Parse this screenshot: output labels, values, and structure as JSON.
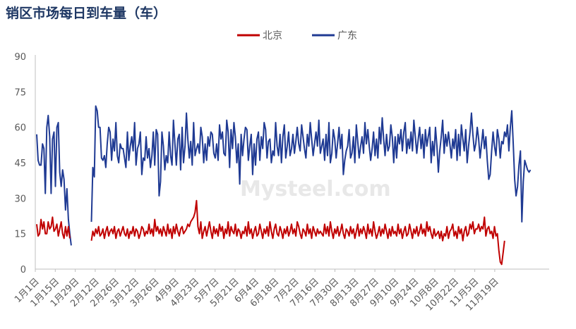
{
  "chart_data": {
    "type": "line",
    "title": "销区市场每日到车量（车）",
    "watermark": "Mysteel.com",
    "legend_position": "top-center",
    "grid": false,
    "ylim": [
      0,
      90
    ],
    "yticks": [
      0,
      15,
      30,
      45,
      60,
      75,
      90
    ],
    "xticks": [
      "1月1日",
      "1月15日",
      "1月29日",
      "2月12日",
      "2月26日",
      "3月12日",
      "3月26日",
      "4月9日",
      "4月23日",
      "5月7日",
      "5月21日",
      "6月4日",
      "6月18日",
      "7月2日",
      "7月16日",
      "7月30日",
      "8月13日",
      "8月27日",
      "9月10日",
      "9月24日",
      "10月8日",
      "10月22日",
      "11月5日",
      "11月19日"
    ],
    "series": [
      {
        "name": "北京",
        "color": "#c00000",
        "segments": [
          {
            "start": 0,
            "values": [
              19,
              14,
              15,
              21,
              17,
              20,
              15,
              15,
              20,
              17,
              18,
              22,
              16,
              17,
              19,
              14,
              17,
              20,
              15,
              13,
              18,
              14,
              18,
              13
            ]
          },
          {
            "start": 38,
            "values": [
              12,
              16,
              14,
              17,
              15,
              18,
              14,
              15,
              17,
              13,
              16,
              18,
              14,
              16,
              17,
              15,
              18,
              13,
              16,
              17,
              14,
              16,
              18,
              15,
              14,
              17,
              13,
              16,
              15,
              18,
              14,
              17,
              16,
              13,
              15,
              18,
              17,
              14,
              16,
              15,
              19,
              15,
              17,
              14,
              21,
              16,
              18,
              15,
              17,
              14,
              18,
              16,
              14,
              19,
              15,
              17,
              13,
              18,
              15,
              19,
              16,
              14,
              17,
              18,
              15,
              16,
              17,
              19,
              18,
              20,
              21,
              22,
              24,
              29,
              18,
              15,
              20,
              13,
              16,
              18,
              14,
              17,
              20,
              16,
              13,
              18,
              15,
              17,
              14,
              19,
              16,
              18,
              13,
              17,
              15,
              20,
              14,
              18,
              16,
              15,
              19,
              14,
              17,
              16,
              13,
              16,
              15,
              18,
              14,
              20,
              15,
              17,
              13,
              16,
              18,
              14,
              15,
              19,
              16,
              13,
              17,
              15,
              18,
              14,
              20,
              16,
              13,
              17,
              19,
              15,
              14,
              18,
              16,
              13,
              17,
              15,
              18,
              14,
              16,
              19,
              15,
              17,
              14,
              20,
              18,
              15,
              13,
              17,
              16,
              14,
              19,
              15,
              17,
              13,
              18,
              16,
              14,
              17,
              15,
              16,
              15,
              14,
              19,
              15,
              18,
              14,
              20,
              16,
              13,
              17,
              15,
              18,
              14,
              16,
              19,
              15,
              13,
              17,
              16,
              14,
              18,
              15,
              17,
              13,
              16,
              19,
              14,
              17,
              15,
              18,
              16,
              13,
              19,
              15,
              17,
              14,
              20,
              16,
              13,
              15,
              18,
              14,
              17,
              15,
              19,
              16,
              13,
              17,
              14,
              18,
              15,
              16,
              14,
              19,
              15,
              17,
              13,
              16,
              18,
              14,
              15,
              19,
              16,
              13,
              17,
              15,
              18,
              14,
              16,
              19,
              15,
              17,
              14,
              20,
              16,
              18,
              15,
              13,
              17,
              14,
              15,
              16,
              13,
              16,
              12,
              15,
              14,
              18,
              13,
              16,
              17,
              19,
              14,
              16,
              13,
              18,
              15,
              17,
              12,
              16,
              18,
              14,
              15,
              19,
              17,
              20,
              15,
              17,
              17,
              19,
              16,
              18,
              17,
              22,
              14,
              17,
              18,
              15,
              16,
              13,
              18,
              14,
              15,
              8,
              3,
              2,
              7,
              12
            ]
          }
        ]
      },
      {
        "name": "广东",
        "color": "#1f3a93",
        "segments": [
          {
            "start": 0,
            "values": [
              57,
              46,
              44,
              44,
              53,
              51,
              32,
              60,
              65,
              56,
              32,
              55,
              58,
              35,
              60,
              62,
              41,
              35,
              42,
              38,
              25,
              34,
              21,
              15,
              10
            ]
          },
          {
            "start": 38,
            "values": [
              20,
              43,
              39,
              69,
              67,
              60,
              60,
              47,
              46,
              48,
              43,
              53,
              60,
              58,
              46,
              55,
              50,
              62,
              48,
              45,
              53,
              51,
              51,
              47,
              43,
              58,
              46,
              52,
              56,
              50,
              62,
              44,
              51,
              53,
              58,
              40,
              47,
              46,
              56,
              47,
              51,
              43,
              48,
              58,
              44,
              59,
              57,
              31,
              37,
              58,
              52,
              42,
              48,
              45,
              58,
              48,
              44,
              63,
              53,
              44,
              55,
              57,
              42,
              60,
              45,
              52,
              66,
              55,
              47,
              54,
              44,
              62,
              48,
              51,
              53,
              49,
              60,
              56,
              45,
              53,
              46,
              56,
              52,
              58,
              57,
              49,
              47,
              53,
              46,
              61,
              55,
              58,
              49,
              48,
              63,
              58,
              43,
              59,
              51,
              62,
              56,
              45,
              53,
              36,
              57,
              48,
              55,
              60,
              59,
              46,
              52,
              57,
              40,
              53,
              44,
              55,
              58,
              46,
              56,
              51,
              62,
              59,
              47,
              54,
              55,
              45,
              50,
              48,
              62,
              52,
              48,
              57,
              45,
              56,
              61,
              47,
              52,
              58,
              48,
              51,
              57,
              49,
              54,
              60,
              53,
              50,
              61,
              56,
              51,
              47,
              57,
              52,
              62,
              55,
              48,
              53,
              58,
              52,
              63,
              49,
              52,
              55,
              46,
              57,
              48,
              62,
              45,
              49,
              59,
              55,
              47,
              53,
              60,
              51,
              57,
              40,
              46,
              50,
              52,
              59,
              47,
              49,
              56,
              45,
              61,
              54,
              47,
              52,
              56,
              49,
              62,
              53,
              59,
              52,
              46,
              51,
              58,
              48,
              55,
              47,
              60,
              53,
              64,
              55,
              48,
              57,
              50,
              52,
              61,
              56,
              45,
              56,
              47,
              57,
              53,
              59,
              50,
              58,
              62,
              49,
              55,
              51,
              58,
              50,
              63,
              56,
              49,
              55,
              60,
              51,
              57,
              47,
              59,
              52,
              56,
              60,
              45,
              54,
              48,
              60,
              52,
              41,
              50,
              56,
              63,
              49,
              57,
              52,
              58,
              53,
              47,
              55,
              51,
              59,
              46,
              57,
              48,
              61,
              55,
              50,
              59,
              45,
              52,
              58,
              66,
              57,
              50,
              53,
              60,
              55,
              47,
              53,
              59,
              51,
              56,
              46,
              38,
              40,
              50,
              58,
              52,
              48,
              59,
              55,
              47,
              54,
              53,
              58,
              56,
              61,
              50,
              60,
              67,
              53,
              38,
              31,
              35,
              44,
              50,
              20,
              37,
              46,
              44,
              42,
              41,
              42
            ]
          }
        ]
      }
    ]
  }
}
